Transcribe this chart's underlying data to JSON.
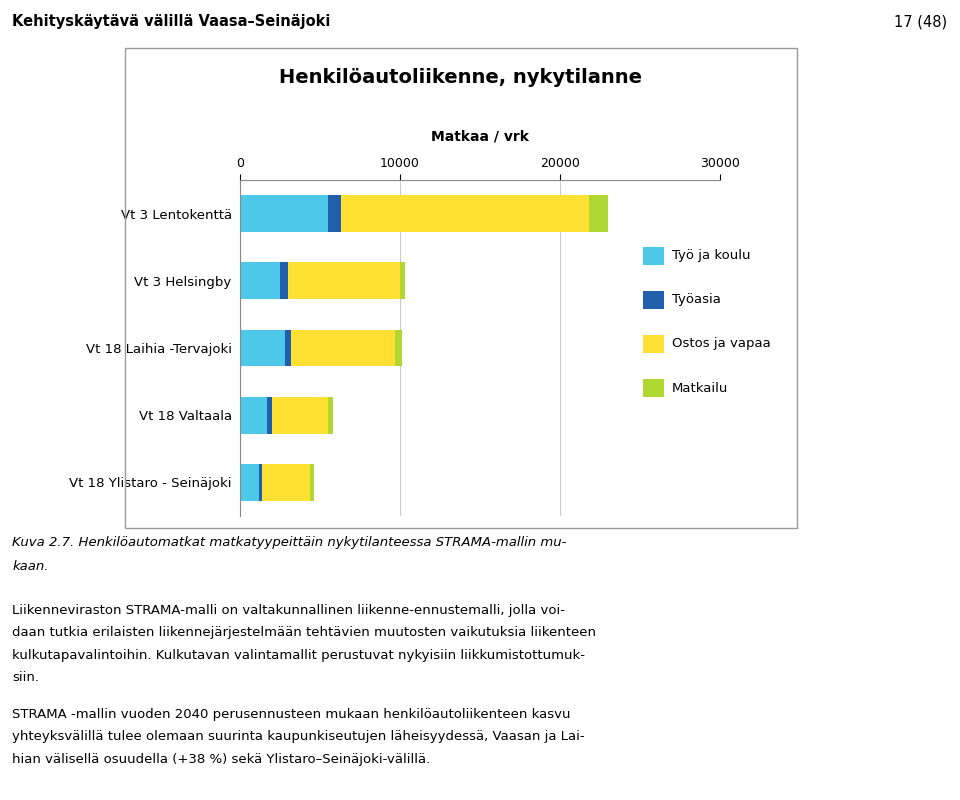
{
  "title": "Henkilöautoliikenne, nykytilanne",
  "xlabel": "Matkaa / vrk",
  "categories": [
    "Vt 3 Lentokenttä",
    "Vt 3 Helsingby",
    "Vt 18 Laihia -Tervajoki",
    "Vt 18 Valtaala",
    "Vt 18 Ylistaro - Seinäjoki"
  ],
  "series": {
    "Työ ja koulu": [
      5500,
      2500,
      2800,
      1700,
      1200
    ],
    "Työasia": [
      800,
      500,
      400,
      300,
      200
    ],
    "Ostos ja vapaa": [
      15500,
      7000,
      6500,
      3500,
      3000
    ],
    "Matkailu": [
      1200,
      300,
      400,
      300,
      200
    ]
  },
  "colors": {
    "Työ ja koulu": "#4DC8E8",
    "Työasia": "#1F5FAD",
    "Ostos ja vapaa": "#FFE033",
    "Matkailu": "#B0D832"
  },
  "xlim": [
    0,
    30000
  ],
  "xticks": [
    0,
    10000,
    20000,
    30000
  ],
  "header_text": "Kehityskäytävä välillä Vaasa–Seinäjoki",
  "page_number": "17 (48)",
  "caption_line1": "Kuva 2.7. Henkilöautomatkat matkatyypeittäin nykytilanteessa STRAMA-mallin mu-",
  "caption_line2": "kaan.",
  "body_text1_line1": "Liikenneviraston STRAMA-malli on valtakunnallinen liikenne-ennustemalli, jolla voi-",
  "body_text1_line2": "daan tutkia erilaisten liikennejärjestelmään tehtävien muutosten vaikutuksia liikenteen",
  "body_text1_line3": "kulkutapavalintoihin. Kulkutavan valintamallit perustuvat nykyisiin liikkumistottumuk-",
  "body_text1_line4": "siin.",
  "body_text2_line1": "STRAMA -mallin vuoden 2040 perusennusteen mukaan henkilöautoliikenteen kasvu",
  "body_text2_line2": "yhteyksvälillä tulee olemaan suurinta kaupunkiseutujen läheisyydessä, Vaasan ja Lai-",
  "body_text2_line3": "hian välisellä osuudella (+38 %) sekä Ylistaro–Seinäjoki-välillä.",
  "chart_bg": "#FFFFFF",
  "page_bg": "#FFFFFF",
  "box_border_color": "#999999"
}
